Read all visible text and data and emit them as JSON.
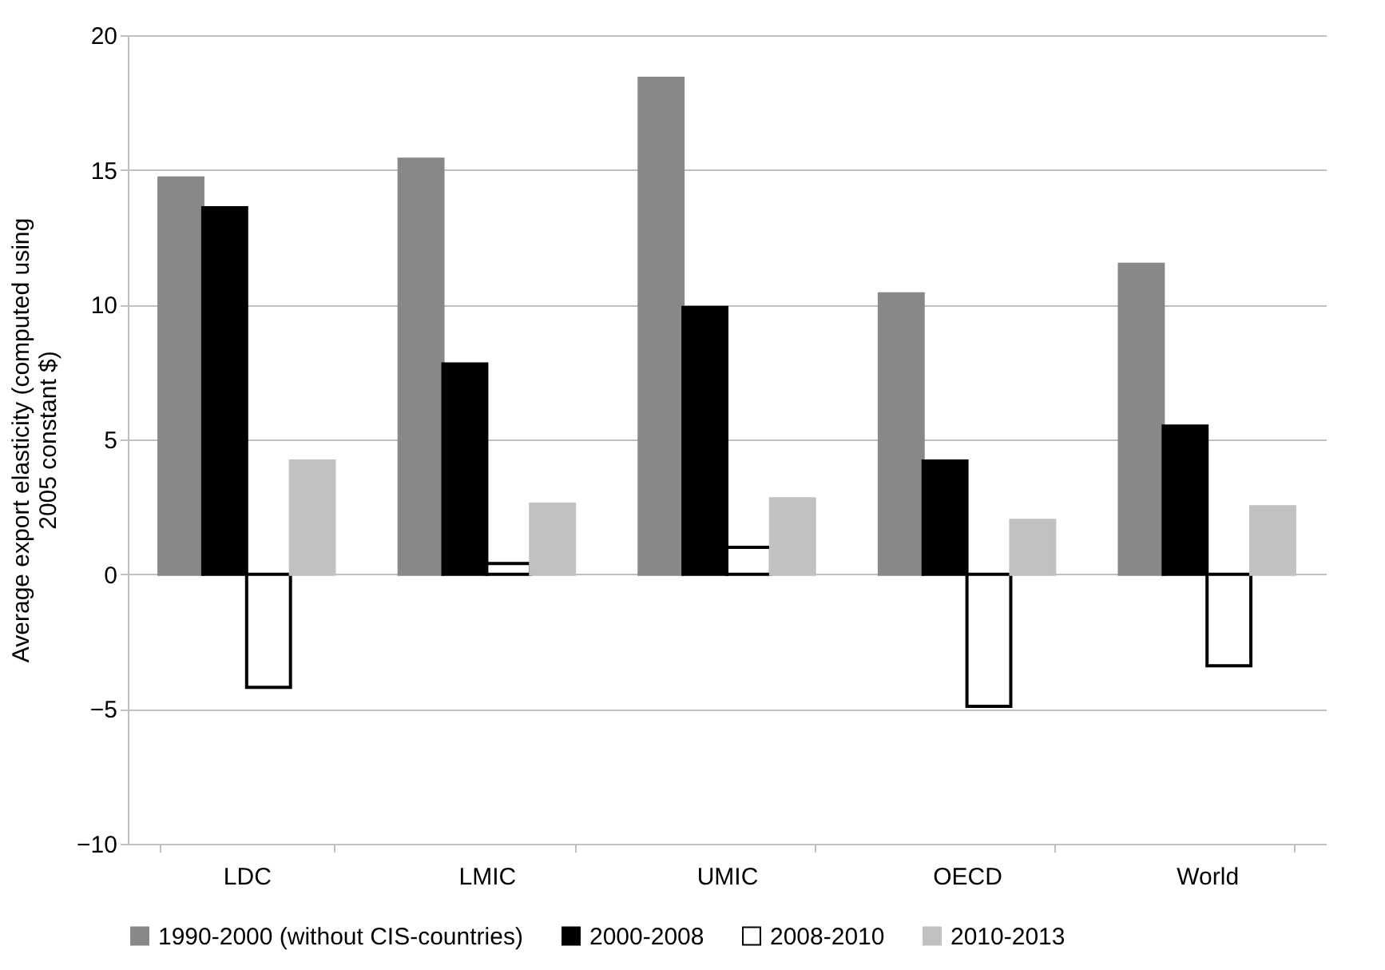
{
  "chart_data": {
    "type": "bar",
    "ylabel": "Average export elasticity (computed using 2005 constant $)",
    "categories": [
      "LDC",
      "LMIC",
      "UMIC",
      "OECD",
      "World"
    ],
    "series": [
      {
        "name": "1990-2000 (without CIS-countries)",
        "color": "#87888a",
        "values": [
          14.7,
          15.4,
          18.4,
          10.4,
          11.5
        ]
      },
      {
        "name": "2000-2008",
        "color": "#000000",
        "values": [
          13.6,
          7.8,
          9.9,
          4.2,
          5.5
        ]
      },
      {
        "name": "2008-2010",
        "color": "#ffffff",
        "values": [
          -4.2,
          0.4,
          1.0,
          -4.9,
          -3.4
        ]
      },
      {
        "name": "2010-2013",
        "color": "#c0c1c0",
        "values": [
          4.2,
          2.6,
          2.8,
          2.0,
          2.5
        ]
      }
    ],
    "ylim": [
      -10,
      20
    ],
    "yticks": [
      -10,
      -5,
      0,
      5,
      10,
      15,
      20
    ],
    "grid": "y",
    "legend": "bottom"
  }
}
